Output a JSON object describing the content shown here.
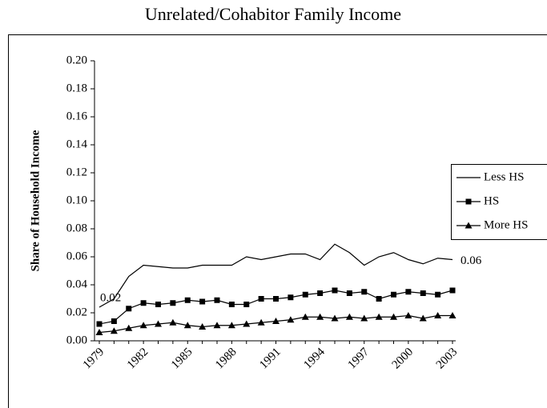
{
  "chart_data": {
    "type": "line",
    "title": "Unrelated/Cohabitor Family Income",
    "y_label": "Share of Household Income",
    "categories": [
      "1979",
      null,
      null,
      "1982",
      null,
      null,
      "1985",
      null,
      null,
      "1988",
      null,
      null,
      "1991",
      null,
      null,
      "1994",
      null,
      null,
      "1997",
      null,
      null,
      "2000",
      null,
      null,
      "2003"
    ],
    "series": [
      {
        "name": "Less HS",
        "color": "#000000",
        "marker": "none",
        "values": [
          0.024,
          0.03,
          0.046,
          0.054,
          0.053,
          0.052,
          0.052,
          0.054,
          0.054,
          0.054,
          0.06,
          0.058,
          0.06,
          0.062,
          0.062,
          0.058,
          0.069,
          0.063,
          0.054,
          0.06,
          0.063,
          0.058,
          0.055,
          0.059,
          0.058
        ],
        "value_labels": [
          "0.02",
          null,
          null,
          null,
          null,
          null,
          null,
          null,
          null,
          null,
          null,
          null,
          null,
          null,
          null,
          null,
          null,
          null,
          null,
          null,
          null,
          null,
          null,
          null,
          "0.06"
        ]
      },
      {
        "name": "HS",
        "color": "#000000",
        "marker": "square",
        "values": [
          0.012,
          0.014,
          0.023,
          0.027,
          0.026,
          0.027,
          0.029,
          0.028,
          0.029,
          0.026,
          0.026,
          0.03,
          0.03,
          0.031,
          0.033,
          0.034,
          0.036,
          0.034,
          0.035,
          0.03,
          0.033,
          0.035,
          0.034,
          0.033,
          0.036
        ]
      },
      {
        "name": "More HS",
        "color": "#000000",
        "marker": "triangle",
        "values": [
          0.006,
          0.007,
          0.009,
          0.011,
          0.012,
          0.013,
          0.011,
          0.01,
          0.011,
          0.011,
          0.012,
          0.013,
          0.014,
          0.015,
          0.017,
          0.017,
          0.016,
          0.017,
          0.016,
          0.017,
          0.017,
          0.018,
          0.016,
          0.018,
          0.018
        ]
      }
    ],
    "ylim": [
      0,
      0.2
    ],
    "yticks": [
      {
        "value": 0,
        "label": "0.00"
      },
      {
        "value": 0.02,
        "label": "0.02"
      },
      {
        "value": 0.04,
        "label": "0.04"
      },
      {
        "value": 0.06,
        "label": "0.06"
      },
      {
        "value": 0.08,
        "label": "0.08"
      },
      {
        "value": 0.1,
        "label": "0.10"
      },
      {
        "value": 0.12,
        "label": "0.12"
      },
      {
        "value": 0.14,
        "label": "0.14"
      },
      {
        "value": 0.16,
        "label": "0.16"
      },
      {
        "value": 0.18,
        "label": "0.18"
      },
      {
        "value": 0.2,
        "label": "0.20"
      }
    ],
    "grid": false,
    "legend": "right"
  }
}
